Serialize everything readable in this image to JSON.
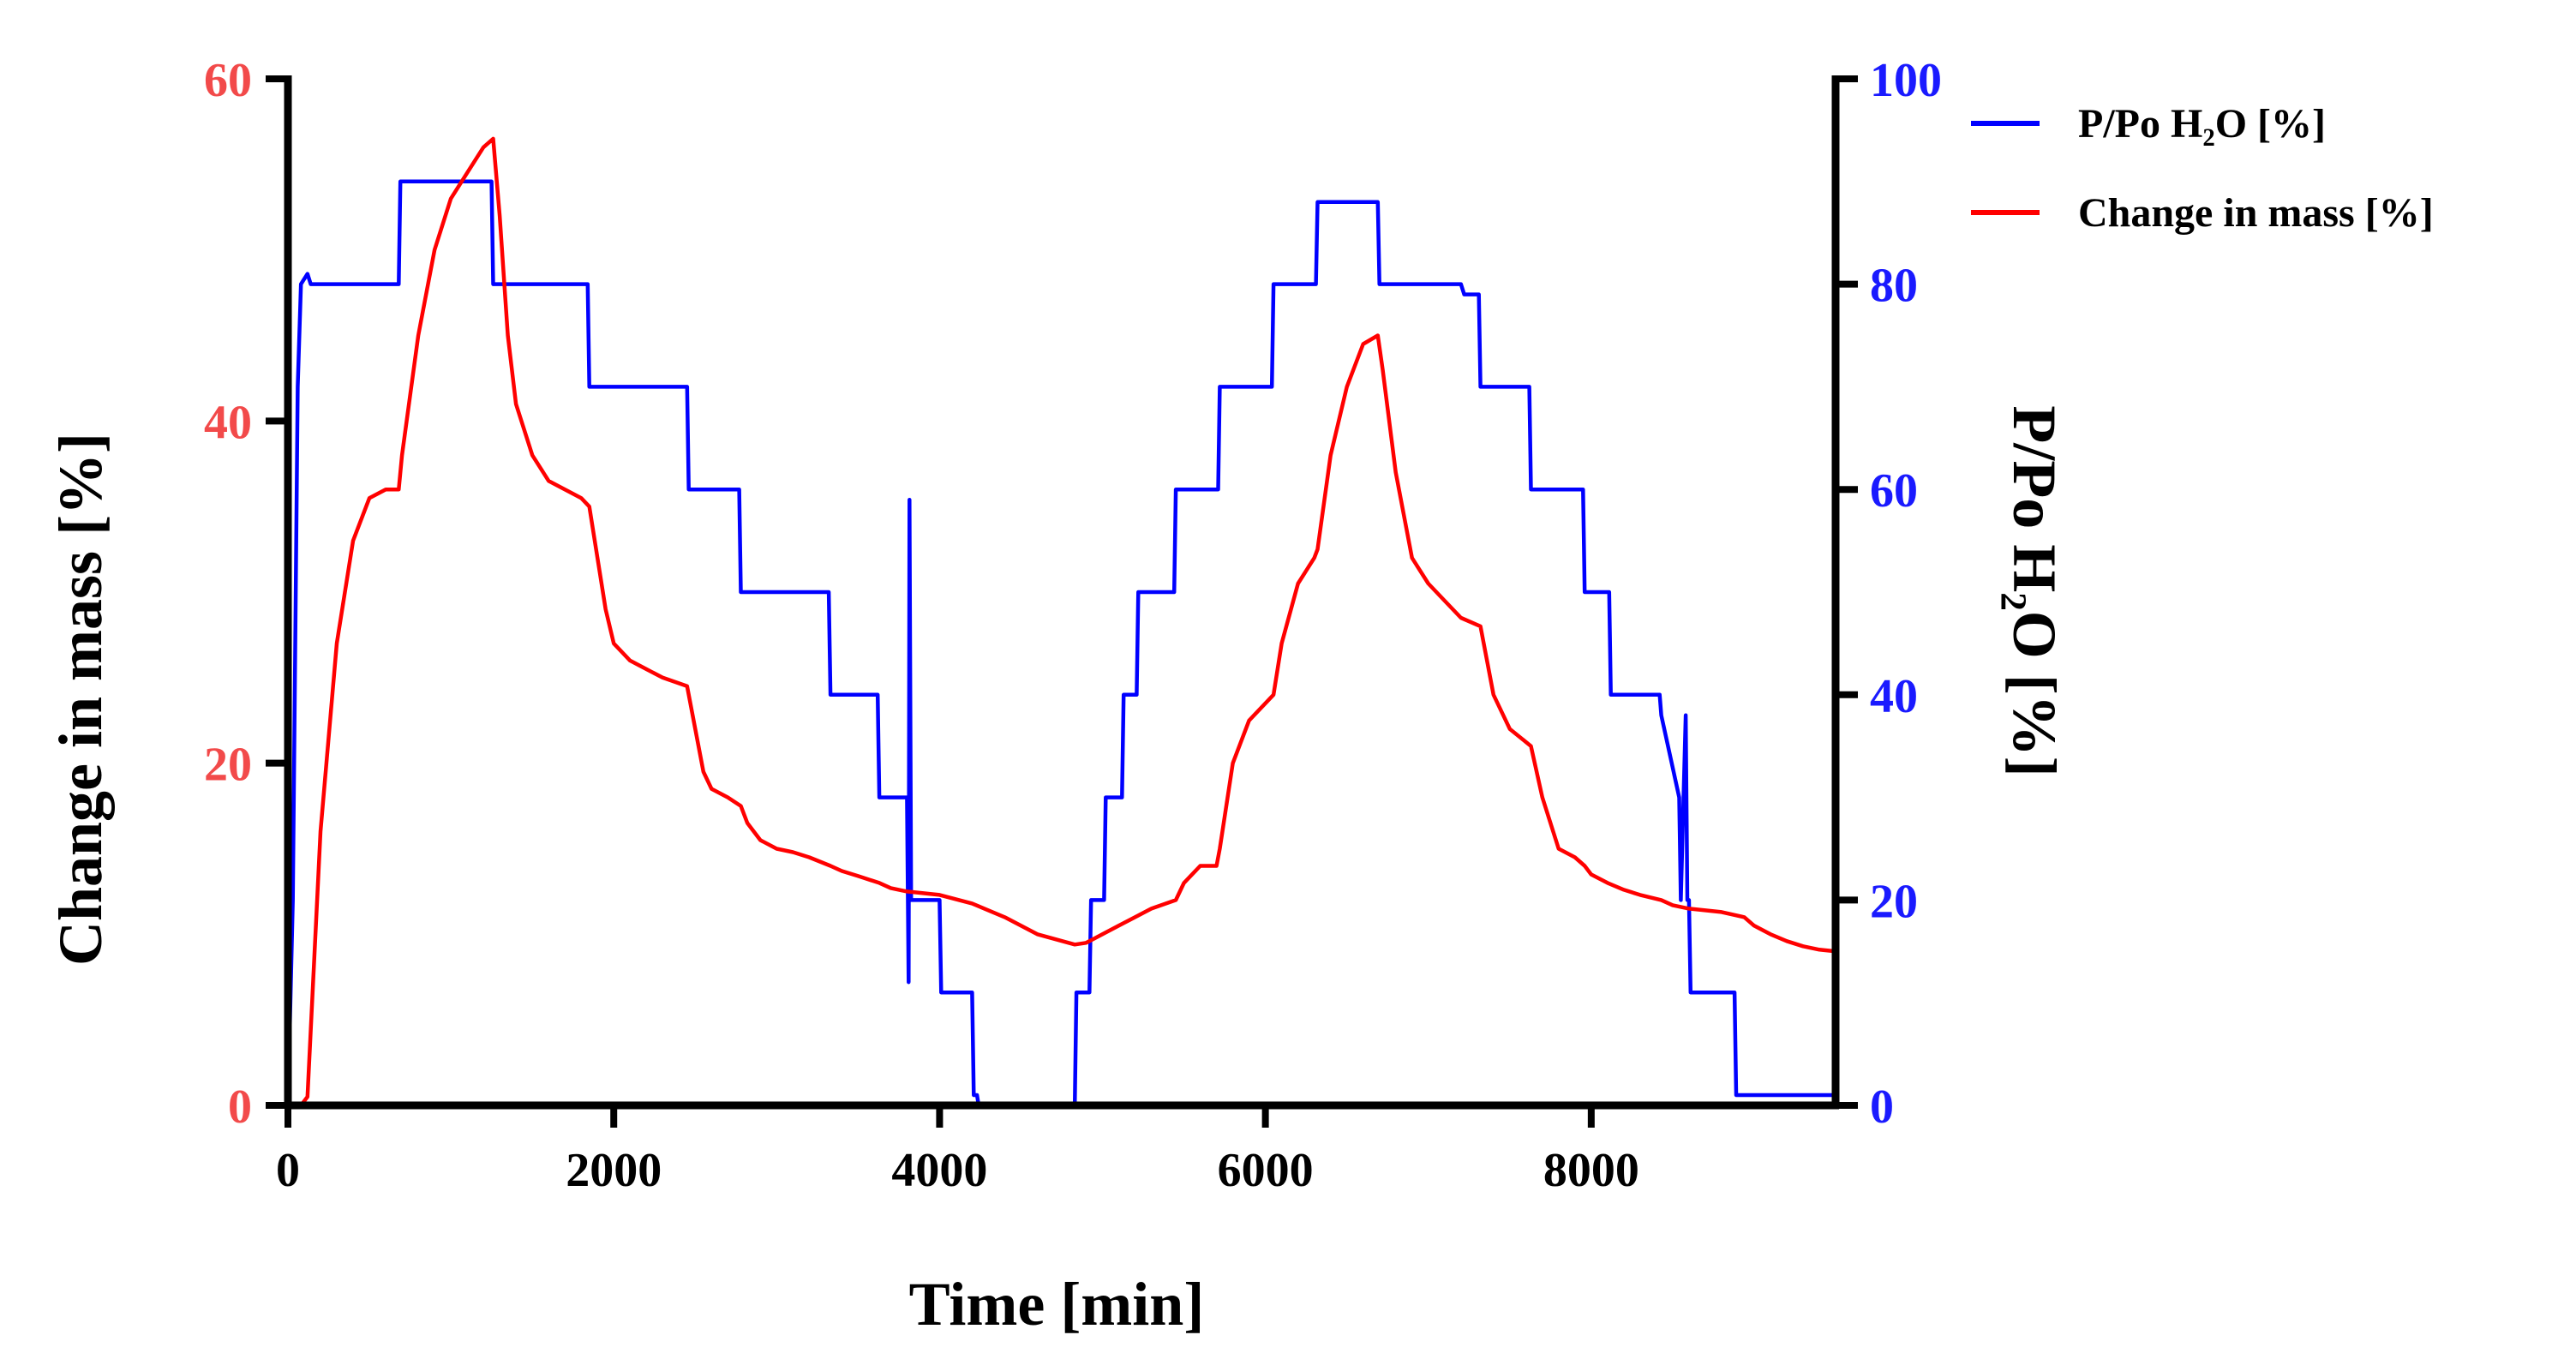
{
  "chart_data": {
    "type": "line",
    "xlabel": "Time [min]",
    "ylabel_left": "Change in mass [%]",
    "ylabel_right": "P/Po H₂O [%]",
    "xlim": [
      0,
      9500
    ],
    "ylim_left": [
      0,
      60
    ],
    "ylim_right": [
      0,
      100
    ],
    "x_ticks": [
      "0",
      "2000",
      "4000",
      "6000",
      "8000"
    ],
    "x_tick_values": [
      0,
      2000,
      4000,
      6000,
      8000
    ],
    "y_left_ticks": [
      "0",
      "20",
      "40",
      "60"
    ],
    "y_left_tick_values": [
      0,
      20,
      40,
      60
    ],
    "y_right_ticks": [
      "0",
      "20",
      "40",
      "60",
      "80",
      "100"
    ],
    "y_right_tick_values": [
      0,
      20,
      40,
      60,
      80,
      100
    ],
    "legend_position": "top-right",
    "grid": false,
    "colors": {
      "left_axis": "#f24a4a",
      "right_axis": "#1a1aff",
      "mass_series": "#ff0000",
      "pressure_series": "#0000ff",
      "axis_line": "#000000"
    },
    "series": [
      {
        "name": "P/Po H₂O [%]",
        "axis": "right",
        "color": "#0000ff",
        "x": [
          0,
          30,
          60,
          80,
          120,
          140,
          680,
          690,
          1250,
          1260,
          1840,
          1850,
          2450,
          2460,
          2770,
          2780,
          3320,
          3330,
          3620,
          3630,
          3800,
          3810,
          3815,
          3825,
          4000,
          4010,
          4200,
          4210,
          4230,
          4240,
          4830,
          4840,
          4920,
          4930,
          5010,
          5020,
          5120,
          5130,
          5210,
          5220,
          5440,
          5450,
          5710,
          5720,
          6040,
          6050,
          6310,
          6320,
          6690,
          6700,
          7200,
          7220,
          7310,
          7320,
          7620,
          7630,
          7950,
          7960,
          8110,
          8120,
          8420,
          8430,
          8540,
          8550,
          8580,
          8590,
          8600,
          8610,
          8880,
          8890,
          8930,
          8940,
          9500
        ],
        "values": [
          0,
          20,
          70,
          80,
          81,
          80,
          80,
          90,
          90,
          80,
          80,
          70,
          70,
          60,
          60,
          50,
          50,
          40,
          40,
          30,
          30,
          12,
          59,
          20,
          20,
          11,
          11,
          1,
          1,
          0,
          0,
          11,
          11,
          20,
          20,
          30,
          30,
          40,
          40,
          50,
          50,
          60,
          60,
          70,
          70,
          80,
          80,
          88,
          88,
          80,
          80,
          79,
          79,
          70,
          70,
          60,
          60,
          50,
          50,
          40,
          40,
          38,
          30,
          20,
          38,
          20,
          20,
          11,
          11,
          1,
          1,
          1,
          1
        ]
      },
      {
        "name": "Change in mass [%]",
        "axis": "left",
        "color": "#ff0000",
        "x": [
          0,
          80,
          120,
          200,
          300,
          400,
          500,
          600,
          680,
          700,
          800,
          900,
          1000,
          1100,
          1200,
          1260,
          1300,
          1350,
          1400,
          1500,
          1600,
          1700,
          1800,
          1850,
          1900,
          1950,
          2000,
          2100,
          2200,
          2300,
          2450,
          2500,
          2550,
          2600,
          2700,
          2780,
          2820,
          2900,
          3000,
          3100,
          3200,
          3330,
          3400,
          3500,
          3630,
          3700,
          3800,
          4000,
          4200,
          4400,
          4600,
          4830,
          4900,
          5000,
          5100,
          5200,
          5300,
          5450,
          5500,
          5600,
          5700,
          5720,
          5800,
          5900,
          6000,
          6050,
          6100,
          6200,
          6300,
          6320,
          6400,
          6500,
          6600,
          6690,
          6720,
          6800,
          6900,
          7000,
          7100,
          7200,
          7320,
          7400,
          7500,
          7630,
          7700,
          7800,
          7900,
          7960,
          8000,
          8100,
          8200,
          8300,
          8430,
          8500,
          8600,
          8800,
          8940,
          9000,
          9100,
          9200,
          9300,
          9400,
          9500
        ],
        "values": [
          0,
          0,
          0.5,
          16,
          27,
          33,
          35.5,
          36,
          36,
          38,
          45,
          50,
          53,
          54.5,
          56,
          56.5,
          52,
          45,
          41,
          38,
          36.5,
          36,
          35.5,
          35,
          32,
          29,
          27,
          26,
          25.5,
          25,
          24.5,
          22,
          19.5,
          18.5,
          18,
          17.5,
          16.5,
          15.5,
          15,
          14.8,
          14.5,
          14,
          13.7,
          13.4,
          13,
          12.7,
          12.5,
          12.3,
          11.8,
          11,
          10,
          9.4,
          9.5,
          10,
          10.5,
          11,
          11.5,
          12,
          13,
          14,
          14,
          15,
          20,
          22.5,
          23.5,
          24,
          27,
          30.5,
          32,
          32.5,
          38,
          42,
          44.5,
          45,
          43,
          37,
          32,
          30.5,
          29.5,
          28.5,
          28,
          24,
          22,
          21,
          18,
          15,
          14.5,
          14,
          13.5,
          13,
          12.6,
          12.3,
          12,
          11.7,
          11.5,
          11.3,
          11,
          10.5,
          10,
          9.6,
          9.3,
          9.1,
          9
        ]
      }
    ]
  }
}
